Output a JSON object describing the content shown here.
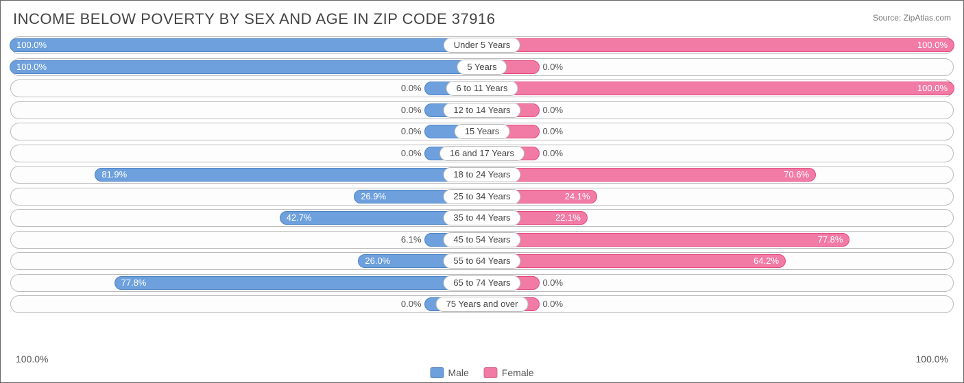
{
  "title": "INCOME BELOW POVERTY BY SEX AND AGE IN ZIP CODE 37916",
  "source": "Source: ZipAtlas.com",
  "axis_label": "100.0%",
  "legend": {
    "male": "Male",
    "female": "Female"
  },
  "colors": {
    "male_bar": "#6da0dc",
    "male_border": "#4e84c4",
    "female_bar": "#f17ba4",
    "female_border": "#e4497f",
    "row_border": "#bbbbbb",
    "background": "#ffffff",
    "text": "#555555"
  },
  "min_bar_pct": 12,
  "inside_threshold": 22,
  "rows": [
    {
      "age": "Under 5 Years",
      "male": 100.0,
      "female": 100.0
    },
    {
      "age": "5 Years",
      "male": 100.0,
      "female": 0.0
    },
    {
      "age": "6 to 11 Years",
      "male": 0.0,
      "female": 100.0
    },
    {
      "age": "12 to 14 Years",
      "male": 0.0,
      "female": 0.0
    },
    {
      "age": "15 Years",
      "male": 0.0,
      "female": 0.0
    },
    {
      "age": "16 and 17 Years",
      "male": 0.0,
      "female": 0.0
    },
    {
      "age": "18 to 24 Years",
      "male": 81.9,
      "female": 70.6
    },
    {
      "age": "25 to 34 Years",
      "male": 26.9,
      "female": 24.1
    },
    {
      "age": "35 to 44 Years",
      "male": 42.7,
      "female": 22.1
    },
    {
      "age": "45 to 54 Years",
      "male": 6.1,
      "female": 77.8
    },
    {
      "age": "55 to 64 Years",
      "male": 26.0,
      "female": 64.2
    },
    {
      "age": "65 to 74 Years",
      "male": 77.8,
      "female": 0.0
    },
    {
      "age": "75 Years and over",
      "male": 0.0,
      "female": 0.0
    }
  ]
}
